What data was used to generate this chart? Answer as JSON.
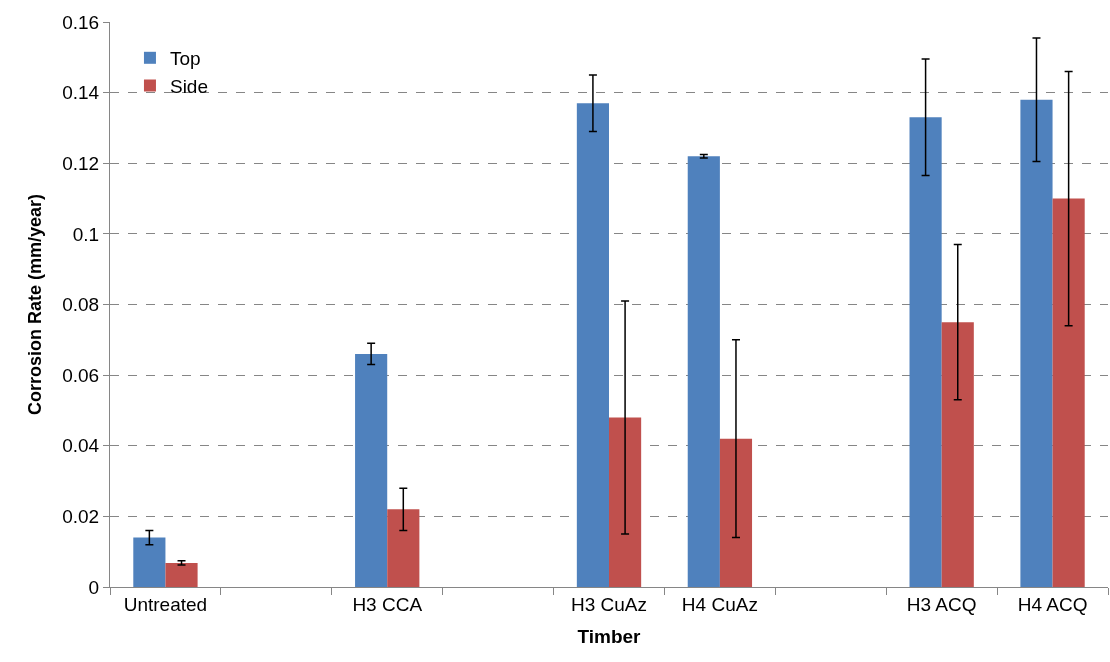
{
  "chart_data": {
    "type": "bar",
    "xlabel": "Timber",
    "ylabel": "Corrosion Rate (mm/year)",
    "categories": [
      "Untreated",
      null,
      "H3 CCA",
      null,
      "H3 CuAz",
      "H4 CuAz",
      null,
      "H3 ACQ",
      "H4 ACQ"
    ],
    "series": [
      {
        "name": "Top",
        "color": "#4f81bd",
        "values": [
          0.014,
          null,
          0.066,
          null,
          0.137,
          0.122,
          null,
          0.133,
          0.138
        ],
        "errors": [
          0.002,
          null,
          0.003,
          null,
          0.008,
          0.0005,
          null,
          0.0165,
          0.0175
        ]
      },
      {
        "name": "Side",
        "color": "#c0504d",
        "values": [
          0.0068,
          null,
          0.022,
          null,
          0.048,
          0.042,
          null,
          0.075,
          0.11
        ],
        "errors": [
          0.0006,
          null,
          0.006,
          null,
          0.033,
          0.028,
          null,
          0.022,
          0.036
        ]
      }
    ],
    "ylim": [
      0,
      0.16
    ],
    "yticks": [
      0,
      0.02,
      0.04,
      0.06,
      0.08,
      0.1,
      0.12,
      0.14,
      0.16
    ],
    "grid": "y",
    "legend": "top left"
  }
}
